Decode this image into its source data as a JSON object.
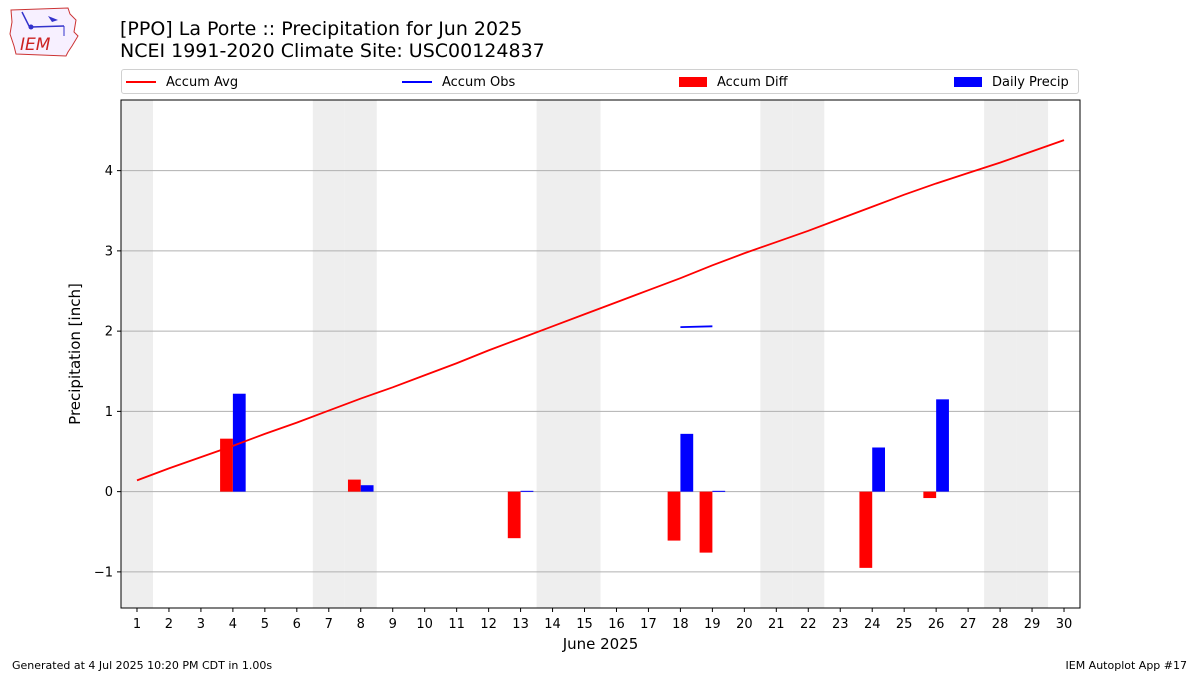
{
  "header": {
    "title_line1": "[PPO] La Porte :: Precipitation for Jun 2025",
    "title_line2": "NCEI 1991-2020 Climate Site: USC00124837",
    "logo_text": "IEM"
  },
  "footer": {
    "left": "Generated at 4 Jul 2025 10:20 PM CDT in 1.00s",
    "right": "IEM Autoplot App #17"
  },
  "legend": [
    {
      "label": "Accum Avg",
      "kind": "line",
      "color": "#ff0000"
    },
    {
      "label": "Accum Obs",
      "kind": "line",
      "color": "#0000ff"
    },
    {
      "label": "Accum Diff",
      "kind": "box",
      "color": "#ff0000"
    },
    {
      "label": "Daily Precip",
      "kind": "box",
      "color": "#0000ff"
    }
  ],
  "chart_data": {
    "type": "bar",
    "xlabel": "June 2025",
    "ylabel": "Precipitation [inch]",
    "xlim": [
      0.5,
      30.5
    ],
    "ylim": [
      -1.45,
      4.88
    ],
    "yticks": [
      -1,
      0,
      1,
      2,
      3,
      4
    ],
    "x_days": [
      1,
      2,
      3,
      4,
      5,
      6,
      7,
      8,
      9,
      10,
      11,
      12,
      13,
      14,
      15,
      16,
      17,
      18,
      19,
      20,
      21,
      22,
      23,
      24,
      25,
      26,
      27,
      28,
      29,
      30
    ],
    "weekend_days": [
      1,
      7,
      8,
      14,
      15,
      21,
      22,
      28,
      29
    ],
    "grid": "horizontal",
    "series": [
      {
        "name": "Accum Avg",
        "type": "line",
        "color": "#ff0000",
        "x": [
          1,
          2,
          3,
          4,
          5,
          6,
          7,
          8,
          9,
          10,
          11,
          12,
          13,
          14,
          15,
          16,
          17,
          18,
          19,
          20,
          21,
          22,
          23,
          24,
          25,
          26,
          27,
          28,
          29,
          30
        ],
        "values": [
          0.14,
          0.29,
          0.43,
          0.57,
          0.72,
          0.86,
          1.01,
          1.16,
          1.3,
          1.45,
          1.6,
          1.76,
          1.91,
          2.06,
          2.21,
          2.36,
          2.51,
          2.66,
          2.82,
          2.97,
          3.11,
          3.25,
          3.4,
          3.55,
          3.7,
          3.84,
          3.97,
          4.1,
          4.24,
          4.38
        ]
      },
      {
        "name": "Accum Obs",
        "type": "line",
        "color": "#0000ff",
        "x": [
          18,
          19
        ],
        "values": [
          2.05,
          2.06
        ]
      },
      {
        "name": "Accum Diff",
        "type": "bar",
        "color": "#ff0000",
        "x": [
          4,
          8,
          13,
          18,
          19,
          24,
          26
        ],
        "values": [
          0.66,
          0.15,
          -0.58,
          -0.61,
          -0.76,
          -0.95,
          -0.08
        ]
      },
      {
        "name": "Daily Precip",
        "type": "bar",
        "color": "#0000ff",
        "x": [
          4,
          8,
          13,
          18,
          19,
          24,
          26
        ],
        "values": [
          1.22,
          0.08,
          0.01,
          0.72,
          0.01,
          0.55,
          1.15
        ]
      }
    ]
  }
}
